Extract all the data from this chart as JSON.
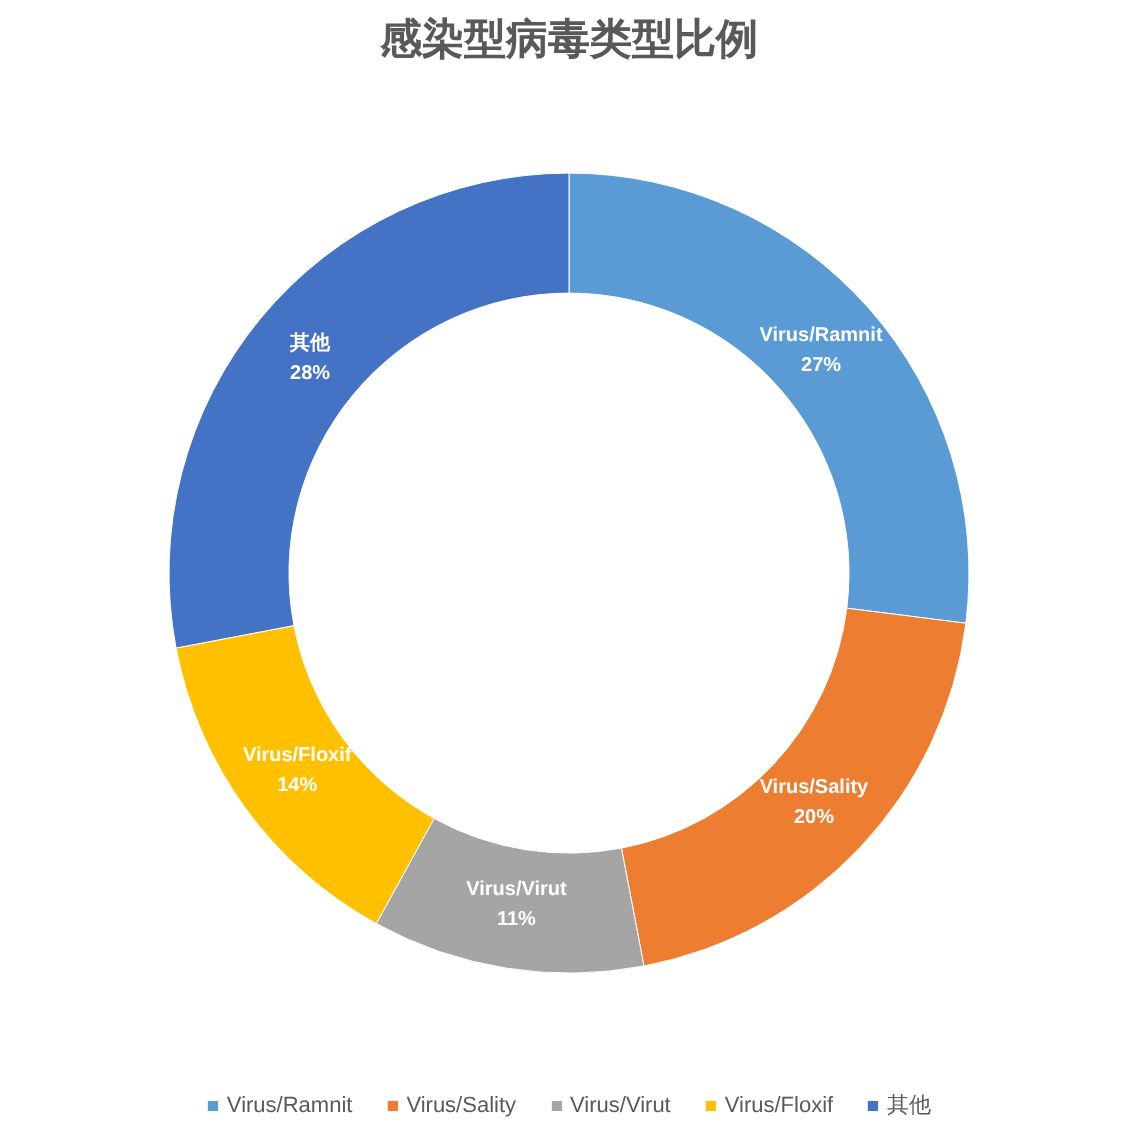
{
  "chart_data": {
    "type": "donut",
    "title": "感染型病毒类型比例",
    "categories": [
      "Virus/Ramnit",
      "Virus/Sality",
      "Virus/Virut",
      "Virus/Floxif",
      "其他"
    ],
    "values": [
      27,
      20,
      11,
      14,
      28
    ],
    "colors": [
      "#5b9bd5",
      "#ed7d31",
      "#a5a5a5",
      "#ffc000",
      "#4472c4"
    ],
    "value_labels": [
      "27%",
      "20%",
      "11%",
      "14%",
      "28%"
    ],
    "legend": "bottom"
  }
}
